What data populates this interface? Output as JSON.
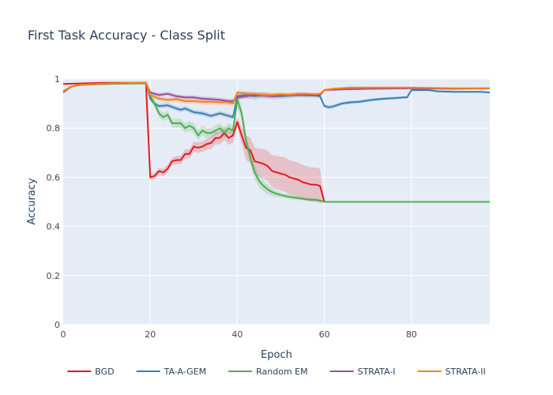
{
  "chart_data": {
    "type": "line",
    "title": "First Task Accuracy - Class Split",
    "xlabel": "Epoch",
    "ylabel": "Accuracy",
    "xlim": [
      0,
      98
    ],
    "ylim": [
      0,
      1
    ],
    "xticks": [
      0,
      20,
      40,
      60,
      80
    ],
    "yticks": [
      0,
      0.2,
      0.4,
      0.6,
      0.8,
      1
    ],
    "grid": true,
    "legend_position": "bottom",
    "colors": {
      "plot_background": "#e5ecf6",
      "grid": "#ffffff",
      "title": "#2a3f5f"
    },
    "series": [
      {
        "name": "BGD",
        "color": "#e41a1c",
        "band_halfwidth": [
          [
            19,
            0.0
          ],
          [
            20,
            0.012
          ],
          [
            30,
            0.02
          ],
          [
            39,
            0.03
          ],
          [
            40,
            0.02
          ],
          [
            42,
            0.05
          ],
          [
            50,
            0.07
          ],
          [
            59,
            0.07
          ],
          [
            60,
            0.0
          ],
          [
            98,
            0.0
          ]
        ],
        "points": [
          [
            0,
            0.98
          ],
          [
            10,
            0.985
          ],
          [
            19,
            0.985
          ],
          [
            20,
            0.6
          ],
          [
            21,
            0.605
          ],
          [
            22,
            0.625
          ],
          [
            23,
            0.62
          ],
          [
            24,
            0.635
          ],
          [
            25,
            0.665
          ],
          [
            26,
            0.67
          ],
          [
            27,
            0.67
          ],
          [
            28,
            0.695
          ],
          [
            29,
            0.695
          ],
          [
            30,
            0.725
          ],
          [
            31,
            0.72
          ],
          [
            32,
            0.725
          ],
          [
            33,
            0.735
          ],
          [
            34,
            0.74
          ],
          [
            35,
            0.76
          ],
          [
            36,
            0.76
          ],
          [
            37,
            0.78
          ],
          [
            38,
            0.76
          ],
          [
            39,
            0.77
          ],
          [
            40,
            0.825
          ],
          [
            41,
            0.77
          ],
          [
            42,
            0.72
          ],
          [
            43,
            0.71
          ],
          [
            44,
            0.665
          ],
          [
            45,
            0.66
          ],
          [
            46,
            0.655
          ],
          [
            47,
            0.645
          ],
          [
            48,
            0.625
          ],
          [
            49,
            0.62
          ],
          [
            50,
            0.615
          ],
          [
            51,
            0.61
          ],
          [
            52,
            0.6
          ],
          [
            53,
            0.595
          ],
          [
            54,
            0.59
          ],
          [
            55,
            0.58
          ],
          [
            56,
            0.575
          ],
          [
            57,
            0.57
          ],
          [
            58,
            0.57
          ],
          [
            59,
            0.565
          ],
          [
            60,
            0.5
          ],
          [
            98,
            0.5
          ]
        ]
      },
      {
        "name": "TA-A-GEM",
        "color": "#377eb8",
        "band_halfwidth": [
          [
            19,
            0.0
          ],
          [
            20,
            0.01
          ],
          [
            39,
            0.01
          ],
          [
            40,
            0.015
          ],
          [
            60,
            0.008
          ],
          [
            80,
            0.005
          ],
          [
            98,
            0.003
          ]
        ],
        "points": [
          [
            0,
            0.945
          ],
          [
            2,
            0.97
          ],
          [
            4,
            0.976
          ],
          [
            10,
            0.98
          ],
          [
            19,
            0.985
          ],
          [
            20,
            0.92
          ],
          [
            21,
            0.9
          ],
          [
            22,
            0.89
          ],
          [
            24,
            0.893
          ],
          [
            26,
            0.88
          ],
          [
            27,
            0.875
          ],
          [
            28,
            0.88
          ],
          [
            30,
            0.865
          ],
          [
            32,
            0.86
          ],
          [
            34,
            0.85
          ],
          [
            36,
            0.86
          ],
          [
            38,
            0.85
          ],
          [
            39,
            0.845
          ],
          [
            40,
            0.93
          ],
          [
            42,
            0.935
          ],
          [
            44,
            0.93
          ],
          [
            46,
            0.935
          ],
          [
            48,
            0.93
          ],
          [
            50,
            0.93
          ],
          [
            54,
            0.935
          ],
          [
            58,
            0.932
          ],
          [
            59,
            0.93
          ],
          [
            60,
            0.89
          ],
          [
            61,
            0.885
          ],
          [
            62,
            0.888
          ],
          [
            64,
            0.9
          ],
          [
            66,
            0.905
          ],
          [
            68,
            0.907
          ],
          [
            70,
            0.913
          ],
          [
            72,
            0.917
          ],
          [
            74,
            0.92
          ],
          [
            76,
            0.922
          ],
          [
            78,
            0.925
          ],
          [
            79,
            0.925
          ],
          [
            80,
            0.955
          ],
          [
            84,
            0.955
          ],
          [
            86,
            0.95
          ],
          [
            90,
            0.948
          ],
          [
            96,
            0.948
          ],
          [
            98,
            0.945
          ]
        ]
      },
      {
        "name": "Random EM",
        "color": "#4daf4a",
        "band_halfwidth": [
          [
            19,
            0.0
          ],
          [
            20,
            0.015
          ],
          [
            30,
            0.02
          ],
          [
            39,
            0.02
          ],
          [
            40,
            0.03
          ],
          [
            44,
            0.03
          ],
          [
            50,
            0.01
          ],
          [
            59,
            0.005
          ],
          [
            60,
            0.0
          ],
          [
            98,
            0.0
          ]
        ],
        "points": [
          [
            0,
            0.95
          ],
          [
            2,
            0.97
          ],
          [
            4,
            0.977
          ],
          [
            10,
            0.98
          ],
          [
            19,
            0.982
          ],
          [
            20,
            0.93
          ],
          [
            21,
            0.9
          ],
          [
            22,
            0.86
          ],
          [
            23,
            0.845
          ],
          [
            24,
            0.855
          ],
          [
            25,
            0.82
          ],
          [
            26,
            0.82
          ],
          [
            27,
            0.82
          ],
          [
            28,
            0.8
          ],
          [
            29,
            0.81
          ],
          [
            30,
            0.8
          ],
          [
            31,
            0.77
          ],
          [
            32,
            0.79
          ],
          [
            33,
            0.78
          ],
          [
            34,
            0.78
          ],
          [
            35,
            0.79
          ],
          [
            36,
            0.8
          ],
          [
            37,
            0.78
          ],
          [
            38,
            0.8
          ],
          [
            39,
            0.79
          ],
          [
            40,
            0.915
          ],
          [
            41,
            0.86
          ],
          [
            42,
            0.75
          ],
          [
            43,
            0.68
          ],
          [
            44,
            0.62
          ],
          [
            45,
            0.585
          ],
          [
            46,
            0.565
          ],
          [
            47,
            0.55
          ],
          [
            48,
            0.54
          ],
          [
            49,
            0.533
          ],
          [
            50,
            0.528
          ],
          [
            52,
            0.52
          ],
          [
            54,
            0.515
          ],
          [
            56,
            0.51
          ],
          [
            58,
            0.508
          ],
          [
            59,
            0.505
          ],
          [
            60,
            0.5
          ],
          [
            98,
            0.5
          ]
        ]
      },
      {
        "name": "STRATA-I",
        "color": "#984ea3",
        "band_halfwidth": [
          [
            19,
            0.0
          ],
          [
            20,
            0.008
          ],
          [
            39,
            0.01
          ],
          [
            60,
            0.005
          ],
          [
            98,
            0.003
          ]
        ],
        "points": [
          [
            0,
            0.95
          ],
          [
            2,
            0.97
          ],
          [
            4,
            0.977
          ],
          [
            10,
            0.982
          ],
          [
            19,
            0.985
          ],
          [
            20,
            0.945
          ],
          [
            22,
            0.935
          ],
          [
            24,
            0.94
          ],
          [
            26,
            0.93
          ],
          [
            28,
            0.925
          ],
          [
            30,
            0.925
          ],
          [
            32,
            0.92
          ],
          [
            34,
            0.918
          ],
          [
            36,
            0.915
          ],
          [
            38,
            0.91
          ],
          [
            39,
            0.91
          ],
          [
            40,
            0.925
          ],
          [
            44,
            0.935
          ],
          [
            48,
            0.93
          ],
          [
            52,
            0.935
          ],
          [
            56,
            0.935
          ],
          [
            59,
            0.935
          ],
          [
            60,
            0.955
          ],
          [
            64,
            0.958
          ],
          [
            70,
            0.96
          ],
          [
            80,
            0.962
          ],
          [
            90,
            0.96
          ],
          [
            98,
            0.962
          ]
        ]
      },
      {
        "name": "STRATA-II",
        "color": "#ff7f0e",
        "band_halfwidth": [
          [
            19,
            0.0
          ],
          [
            20,
            0.01
          ],
          [
            39,
            0.012
          ],
          [
            60,
            0.005
          ],
          [
            98,
            0.003
          ]
        ],
        "points": [
          [
            0,
            0.95
          ],
          [
            2,
            0.97
          ],
          [
            4,
            0.977
          ],
          [
            10,
            0.982
          ],
          [
            19,
            0.985
          ],
          [
            20,
            0.935
          ],
          [
            22,
            0.92
          ],
          [
            24,
            0.915
          ],
          [
            26,
            0.918
          ],
          [
            28,
            0.91
          ],
          [
            30,
            0.91
          ],
          [
            32,
            0.907
          ],
          [
            34,
            0.908
          ],
          [
            36,
            0.905
          ],
          [
            38,
            0.905
          ],
          [
            39,
            0.9
          ],
          [
            40,
            0.945
          ],
          [
            42,
            0.94
          ],
          [
            44,
            0.94
          ],
          [
            46,
            0.935
          ],
          [
            48,
            0.935
          ],
          [
            50,
            0.938
          ],
          [
            52,
            0.935
          ],
          [
            54,
            0.94
          ],
          [
            56,
            0.94
          ],
          [
            58,
            0.938
          ],
          [
            59,
            0.94
          ],
          [
            60,
            0.955
          ],
          [
            62,
            0.96
          ],
          [
            66,
            0.965
          ],
          [
            70,
            0.965
          ],
          [
            80,
            0.965
          ],
          [
            90,
            0.962
          ],
          [
            98,
            0.962
          ]
        ]
      }
    ]
  }
}
